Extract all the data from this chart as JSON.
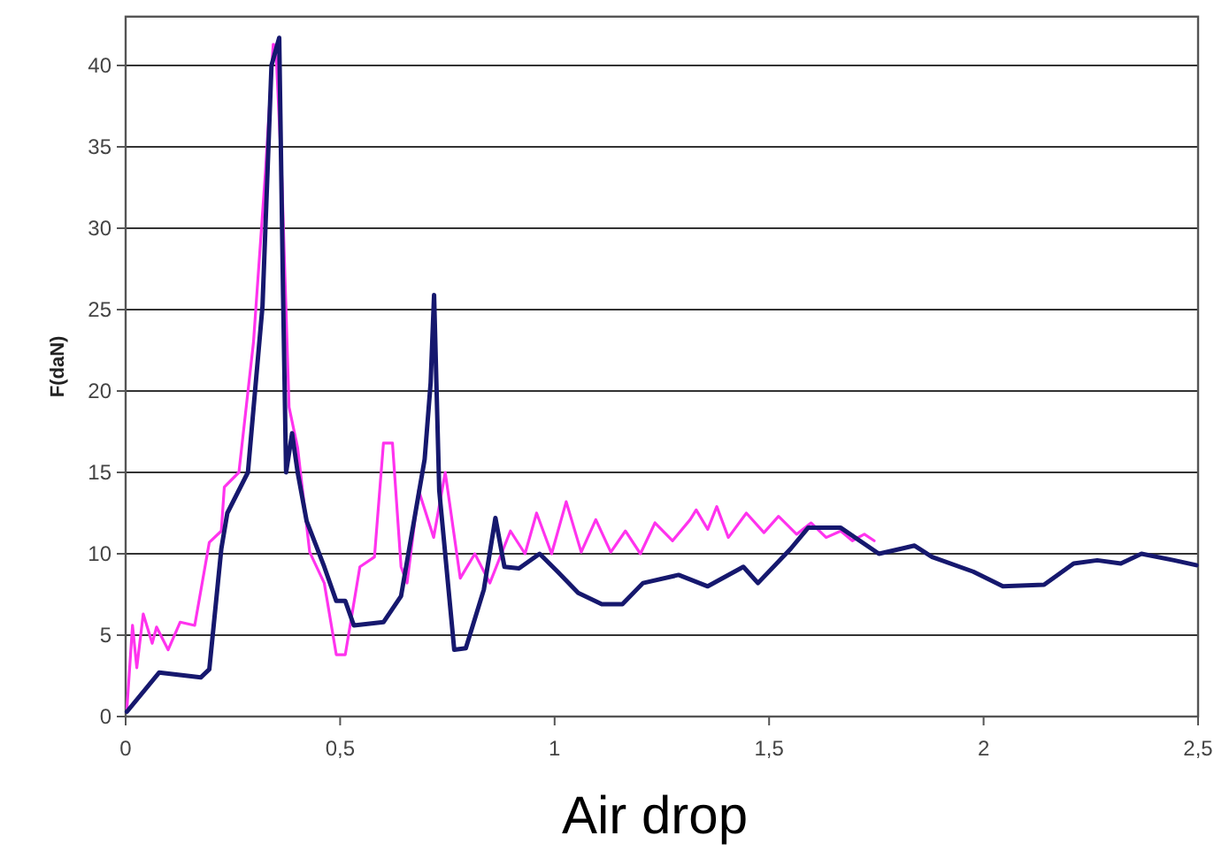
{
  "chart_data": {
    "type": "line",
    "ylabel": "F(daN)",
    "annotations": [
      "Air drop"
    ],
    "xlim": [
      0,
      2.5
    ],
    "xticks": [
      0,
      {
        "value": 0.5,
        "label": "0,5"
      },
      1,
      {
        "value": 1.5,
        "label": "1,5"
      },
      2,
      {
        "value": 2.5,
        "label": "2,5"
      }
    ],
    "ylim": [
      0,
      43
    ],
    "yticks": [
      0,
      5,
      10,
      15,
      20,
      25,
      30,
      35,
      40
    ],
    "grid": "y",
    "marker": "none",
    "line_style": "solid",
    "series": [
      {
        "color": "#ff33ee",
        "x": [
          0.003,
          0.016,
          0.026,
          0.041,
          0.062,
          0.072,
          0.099,
          0.127,
          0.161,
          0.195,
          0.223,
          0.23,
          0.264,
          0.298,
          0.326,
          0.344,
          0.35,
          0.364,
          0.381,
          0.401,
          0.429,
          0.463,
          0.491,
          0.512,
          0.546,
          0.58,
          0.601,
          0.622,
          0.642,
          0.656,
          0.683,
          0.718,
          0.745,
          0.78,
          0.814,
          0.849,
          0.897,
          0.931,
          0.958,
          0.993,
          1.027,
          1.062,
          1.096,
          1.131,
          1.165,
          1.2,
          1.234,
          1.275,
          1.316,
          1.33,
          1.357,
          1.378,
          1.405,
          1.447,
          1.488,
          1.522,
          1.564,
          1.598,
          1.633,
          1.667,
          1.694,
          1.722,
          1.745
        ],
        "values": [
          0.5,
          5.6,
          3,
          6.3,
          4.5,
          5.5,
          4.1,
          5.8,
          5.6,
          10.7,
          11.4,
          14.1,
          15,
          23,
          33.5,
          41.3,
          41.2,
          33.2,
          19,
          16.5,
          10.1,
          8.2,
          3.8,
          3.8,
          9.2,
          9.8,
          16.8,
          16.8,
          9.2,
          8.2,
          13.9,
          11,
          15,
          8.5,
          10,
          8.2,
          11.4,
          10,
          12.5,
          10,
          13.2,
          10.1,
          12.1,
          10.1,
          11.4,
          10,
          11.9,
          10.8,
          12.1,
          12.7,
          11.5,
          12.9,
          11,
          12.5,
          11.3,
          12.3,
          11.2,
          11.9,
          11,
          11.4,
          10.8,
          11.2,
          10.8
        ]
      },
      {
        "color": "#16186e",
        "x": [
          0.003,
          0.078,
          0.175,
          0.195,
          0.223,
          0.237,
          0.285,
          0.319,
          0.34,
          0.358,
          0.367,
          0.374,
          0.388,
          0.401,
          0.422,
          0.463,
          0.491,
          0.512,
          0.532,
          0.601,
          0.642,
          0.697,
          0.711,
          0.719,
          0.731,
          0.766,
          0.793,
          0.835,
          0.862,
          0.883,
          0.917,
          0.965,
          1.007,
          1.055,
          1.11,
          1.158,
          1.206,
          1.289,
          1.357,
          1.44,
          1.474,
          1.55,
          1.591,
          1.667,
          1.756,
          1.839,
          1.88,
          1.976,
          2.045,
          2.141,
          2.21,
          2.265,
          2.32,
          2.368,
          2.444,
          2.496
        ],
        "values": [
          0.3,
          2.7,
          2.4,
          2.9,
          10.3,
          12.5,
          15,
          25.2,
          40,
          41.7,
          25.9,
          15,
          17.4,
          15,
          12,
          9.2,
          7.1,
          7.1,
          5.6,
          5.8,
          7.4,
          15.8,
          20.5,
          25.9,
          13.9,
          4.1,
          4.2,
          7.8,
          12.2,
          9.2,
          9.1,
          10,
          8.9,
          7.6,
          6.9,
          6.9,
          8.2,
          8.7,
          8,
          9.2,
          8.2,
          10.3,
          11.6,
          11.6,
          10,
          10.5,
          9.8,
          8.9,
          8,
          8.1,
          9.4,
          9.6,
          9.4,
          10,
          9.6,
          9.3
        ]
      }
    ]
  }
}
